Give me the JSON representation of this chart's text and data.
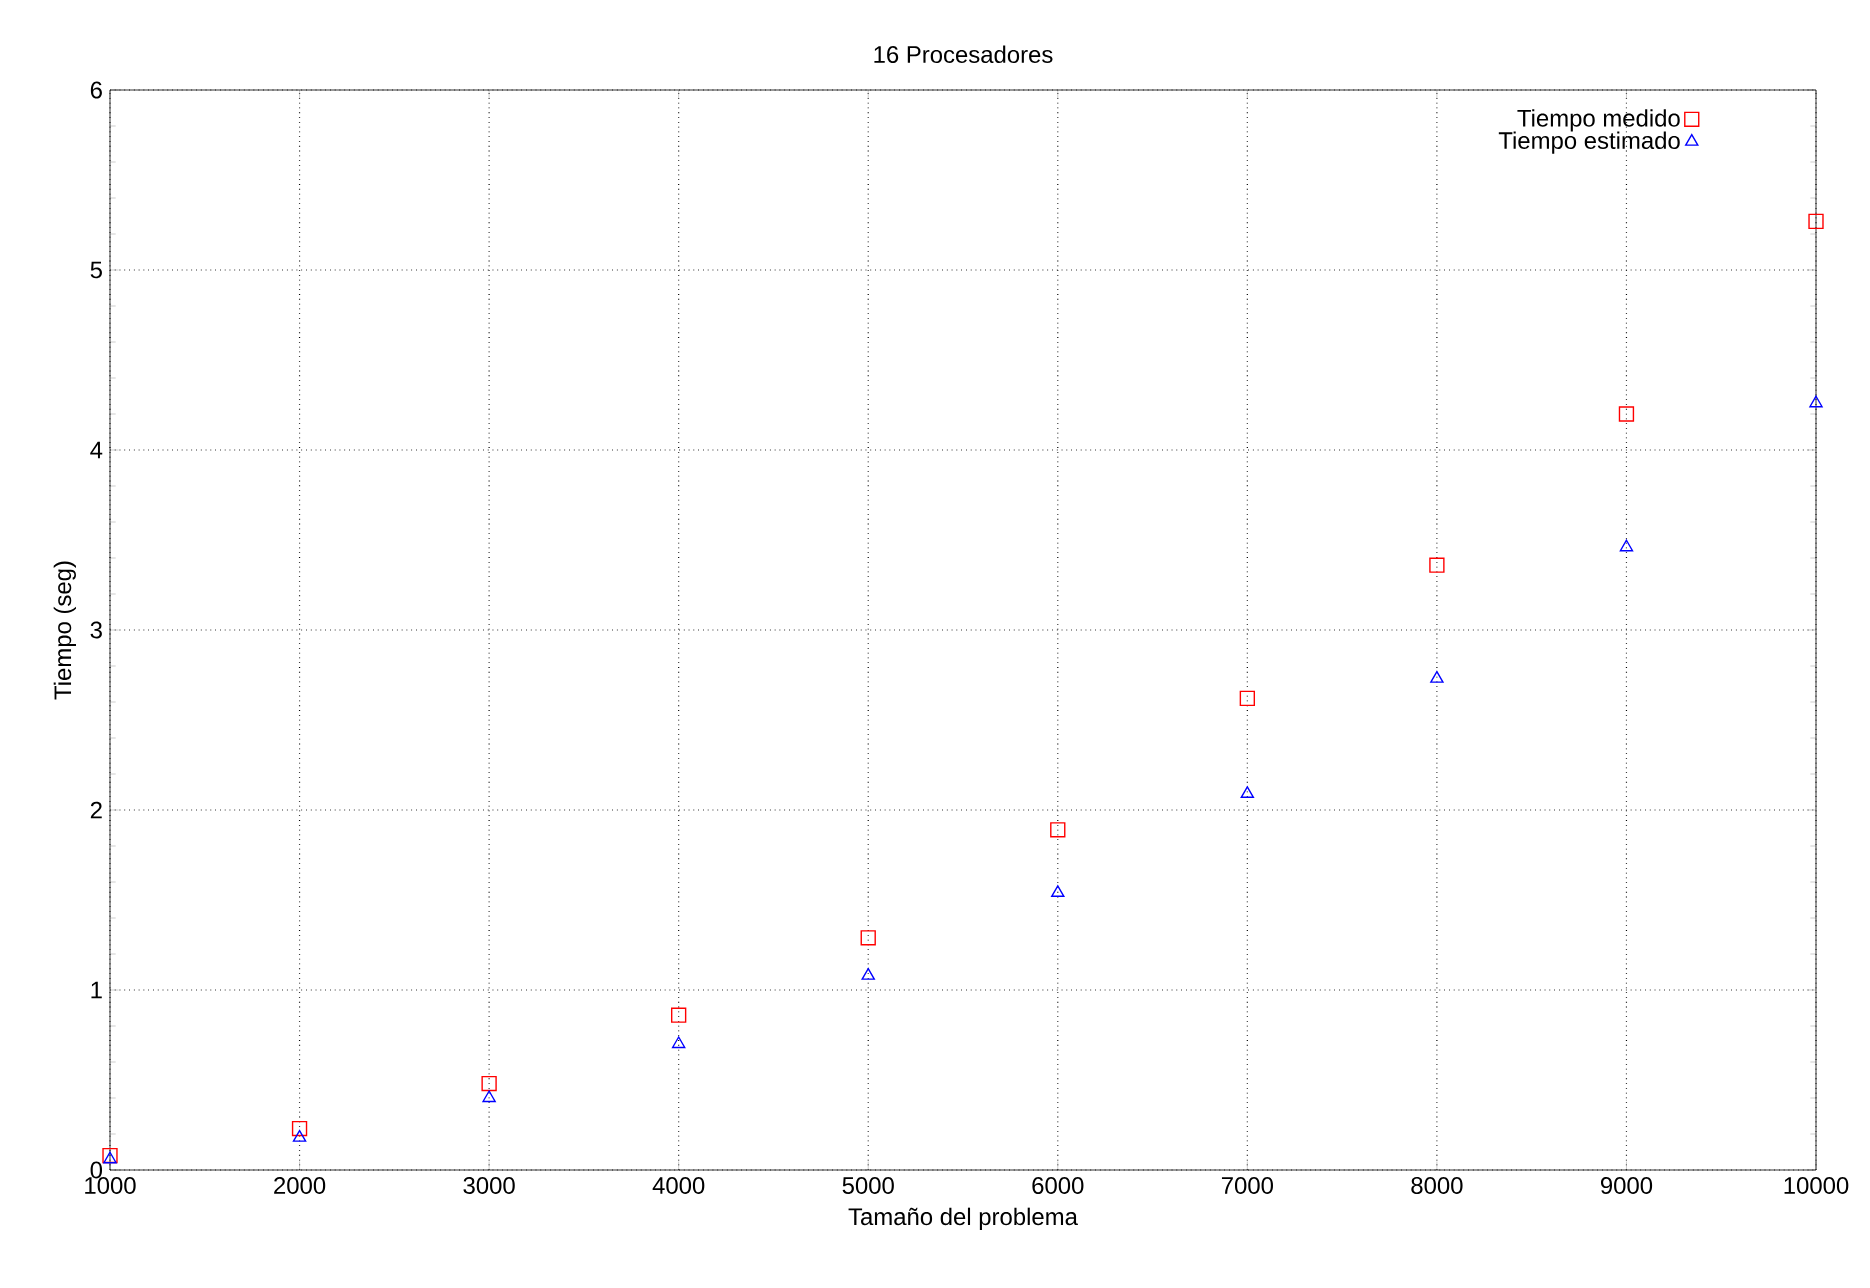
{
  "chart_data": {
    "type": "scatter",
    "title": "16 Procesadores",
    "xlabel": "Tamaño del problema",
    "ylabel": "Tiempo (seg)",
    "x": [
      1000,
      2000,
      3000,
      4000,
      5000,
      6000,
      7000,
      8000,
      9000,
      10000
    ],
    "series": [
      {
        "name": "Tiempo medido",
        "color": "#ff0000",
        "marker": "square",
        "values": [
          0.08,
          0.23,
          0.48,
          0.86,
          1.29,
          1.89,
          2.62,
          3.36,
          4.2,
          5.27
        ]
      },
      {
        "name": "Tiempo estimado",
        "color": "#0000ff",
        "marker": "triangle",
        "values": [
          0.06,
          0.18,
          0.4,
          0.7,
          1.08,
          1.54,
          2.09,
          2.73,
          3.46,
          4.26
        ]
      }
    ],
    "xlim": [
      1000,
      10000
    ],
    "ylim": [
      0,
      6
    ],
    "xticks": [
      1000,
      2000,
      3000,
      4000,
      5000,
      6000,
      7000,
      8000,
      9000,
      10000
    ],
    "yticks": [
      0,
      1,
      2,
      3,
      4,
      5,
      6
    ],
    "grid": true,
    "legend": "top right"
  }
}
